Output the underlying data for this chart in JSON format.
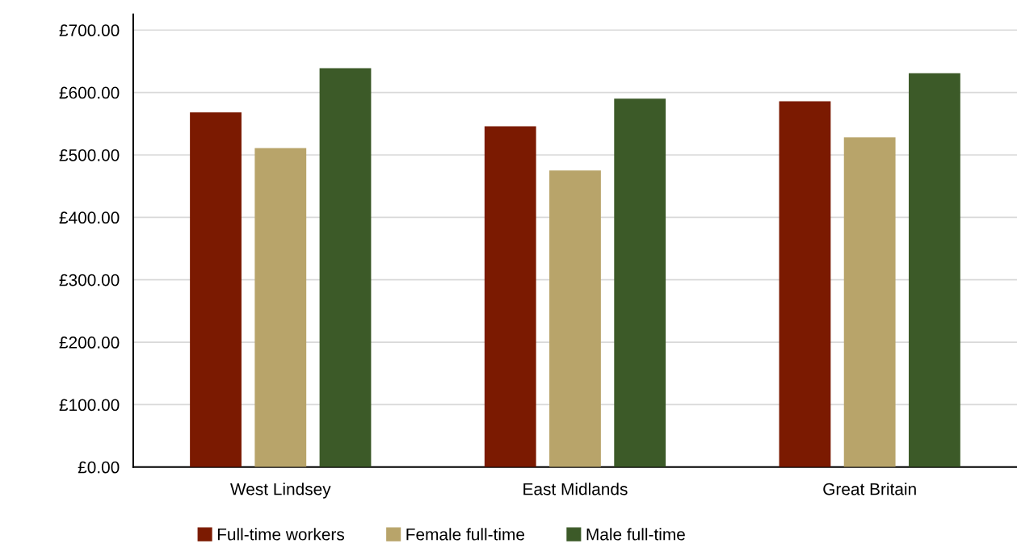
{
  "chart_data": {
    "type": "bar",
    "categories": [
      "West Lindsey",
      "East Midlands",
      "Great Britain"
    ],
    "series": [
      {
        "name": "Full-time workers",
        "color": "#7b1a01",
        "values": [
          568,
          546,
          586
        ]
      },
      {
        "name": "Female full-time",
        "color": "#b8a46a",
        "values": [
          511,
          475,
          528
        ]
      },
      {
        "name": "Male full-time",
        "color": "#3c5a28",
        "values": [
          639,
          590,
          631
        ]
      }
    ],
    "ylim": [
      0,
      725
    ],
    "yticks": [
      {
        "value": 0,
        "label": "£0.00"
      },
      {
        "value": 100,
        "label": "£100.00"
      },
      {
        "value": 200,
        "label": "£200.00"
      },
      {
        "value": 300,
        "label": "£300.00"
      },
      {
        "value": 400,
        "label": "£400.00"
      },
      {
        "value": 500,
        "label": "£500.00"
      },
      {
        "value": 600,
        "label": "£600.00"
      },
      {
        "value": 700,
        "label": "£700.00"
      }
    ],
    "grid": "y",
    "legend": "bottom"
  }
}
